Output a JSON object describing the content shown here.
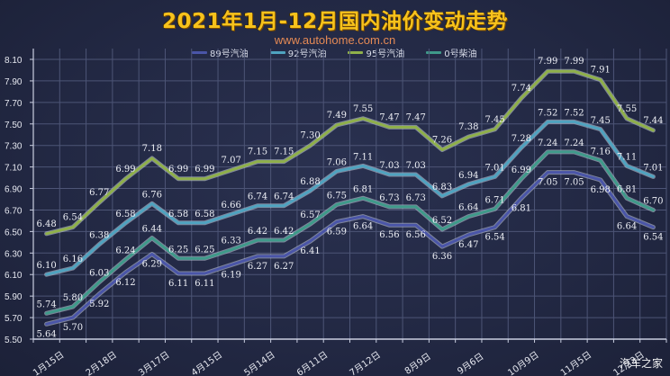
{
  "header": {
    "title": "2021年1月-12月国内油价变动走势",
    "subtitle": "www.autohome.com.cn"
  },
  "watermark": "汽车之家",
  "colors": {
    "background": "#232a42",
    "title": "#f7c21c",
    "subtitle": "#e58a55",
    "grid": "#5a6180",
    "series_89": "#4a55a8",
    "series_92": "#4fa3c0",
    "series_95": "#8fb04a",
    "series_0": "#3f9a8a"
  },
  "chart_data": {
    "type": "line",
    "title": "2021年1月-12月国内油价变动走势",
    "subtitle": "www.autohome.com.cn",
    "xlabel": "",
    "ylabel": "",
    "ylim": [
      5.5,
      8.1
    ],
    "yticks": [
      5.5,
      5.7,
      5.9,
      6.1,
      6.3,
      6.5,
      6.7,
      6.9,
      7.1,
      7.3,
      7.5,
      7.7,
      7.9,
      8.1
    ],
    "grid": true,
    "legend_position": "top",
    "x_tick_labels": [
      "1月15日",
      "2月18日",
      "3月17日",
      "4月15日",
      "5月14日",
      "6月11日",
      "7月12日",
      "8月9日",
      "9月6日",
      "10月9日",
      "11月5日",
      "12月3日"
    ],
    "x_tick_label_every": 2,
    "point_count": 24,
    "series": [
      {
        "name": "89号汽油",
        "color": "#4a55a8",
        "values": [
          5.64,
          5.7,
          5.92,
          6.12,
          6.29,
          6.11,
          6.11,
          6.19,
          6.27,
          6.27,
          6.41,
          6.59,
          6.64,
          6.56,
          6.56,
          6.36,
          6.47,
          6.54,
          6.81,
          7.05,
          7.05,
          6.98,
          6.64,
          6.54
        ]
      },
      {
        "name": "92号汽油",
        "color": "#4fa3c0",
        "values": [
          6.1,
          6.16,
          6.38,
          6.58,
          6.76,
          6.58,
          6.58,
          6.66,
          6.74,
          6.74,
          6.88,
          7.06,
          7.11,
          7.03,
          7.03,
          6.83,
          6.94,
          7.01,
          7.28,
          7.52,
          7.52,
          7.45,
          7.11,
          7.01
        ]
      },
      {
        "name": "95号汽油",
        "color": "#8fb04a",
        "values": [
          6.48,
          6.54,
          6.77,
          6.99,
          7.18,
          6.99,
          6.99,
          7.07,
          7.15,
          7.15,
          7.3,
          7.49,
          7.55,
          7.47,
          7.47,
          7.26,
          7.38,
          7.45,
          7.74,
          7.99,
          7.99,
          7.91,
          7.55,
          7.44
        ]
      },
      {
        "name": "0号柴油",
        "color": "#3f9a8a",
        "values": [
          5.74,
          5.8,
          6.03,
          6.24,
          6.44,
          6.25,
          6.25,
          6.33,
          6.42,
          6.42,
          6.57,
          6.75,
          6.81,
          6.73,
          6.73,
          6.52,
          6.64,
          6.71,
          6.99,
          7.24,
          7.24,
          7.16,
          6.81,
          6.7
        ]
      }
    ]
  },
  "legend": {
    "items": [
      {
        "label": "89号汽油",
        "color": "#4a55a8"
      },
      {
        "label": "92号汽油",
        "color": "#4fa3c0"
      },
      {
        "label": "95号汽油",
        "color": "#8fb04a"
      },
      {
        "label": "0号柴油",
        "color": "#3f9a8a"
      }
    ]
  }
}
